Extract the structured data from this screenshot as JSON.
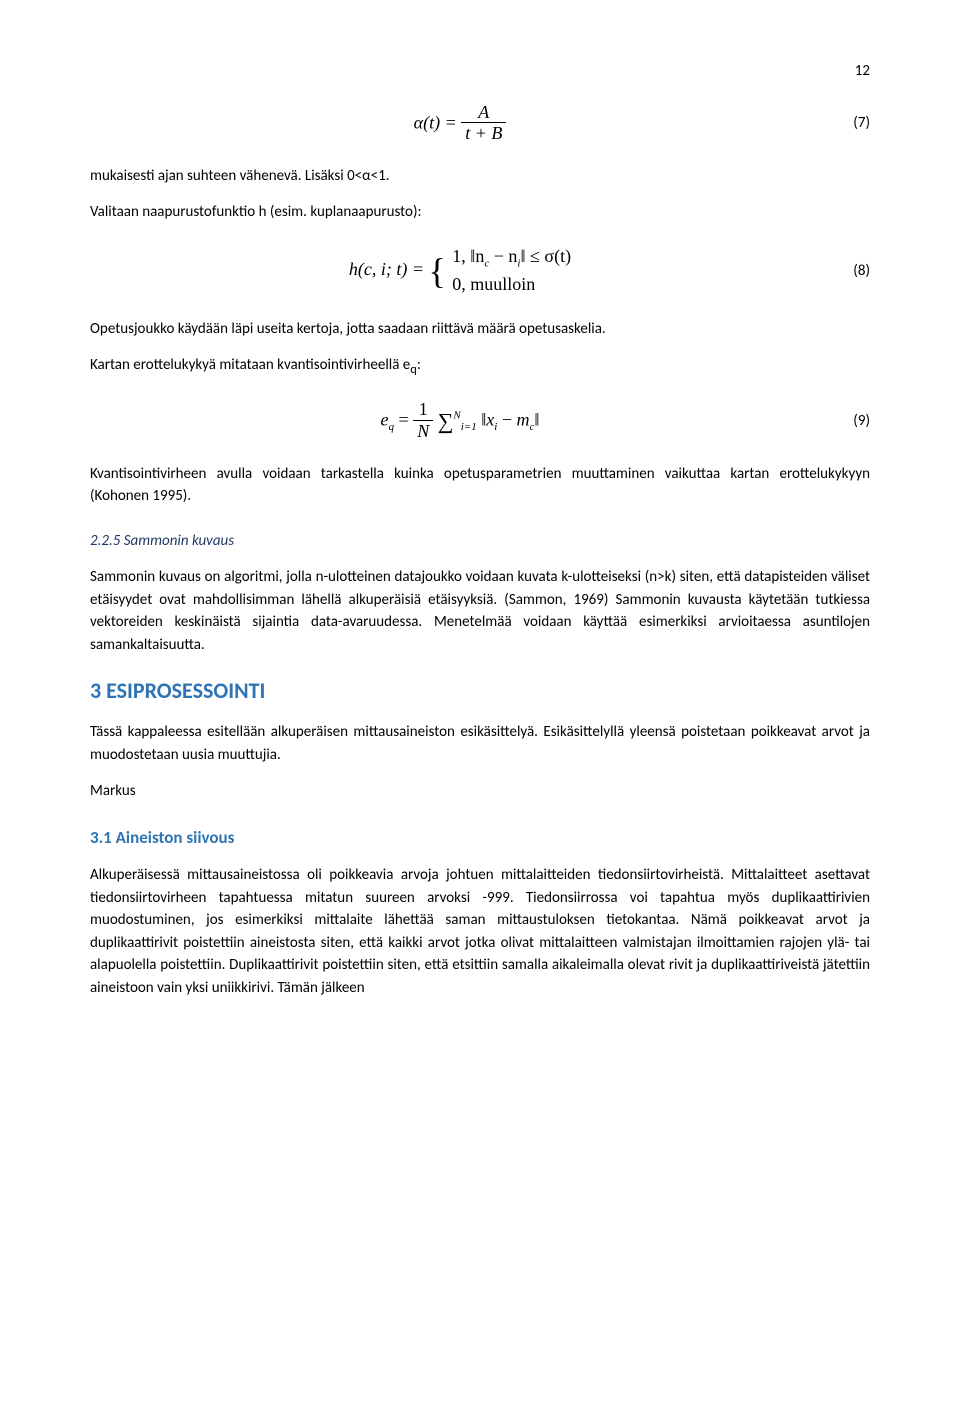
{
  "page_number": "12",
  "formula7": {
    "num": "(7)",
    "lhs": "α(t) = ",
    "frac_top": "A",
    "frac_bot": "t + B"
  },
  "p1": "mukaisesti ajan suhteen vähenevä. Lisäksi 0<α<1.",
  "p2": "Valitaan naapurustofunktio h (esim. kuplanaapurusto):",
  "formula8": {
    "num": "(8)",
    "lhs": "h(c, i; t) = ",
    "case1_pre": "1,   ‖",
    "case1_nc": "n",
    "case1_c": "c",
    "case1_mid": " − ",
    "case1_ni": "n",
    "case1_i": "i",
    "case1_post": "‖ ≤ σ(t)",
    "case2": "0,   muulloin"
  },
  "p3": "Opetusjoukko käydään läpi useita kertoja, jotta saadaan riittävä määrä opetusaskelia.",
  "p4_pre": "Kartan erottelukykyä mitataan kvantisointivirheellä e",
  "p4_sub": "q",
  "p4_post": ":",
  "formula9": {
    "num": "(9)",
    "part1": "e",
    "part1_sub": "q",
    "part2": " = ",
    "frac_top": "1",
    "frac_bot": "N",
    "sum_lower": "i=1",
    "sum_upper": "N",
    "part3_pre": "‖",
    "part3_x": "x",
    "part3_xi": "i",
    "part3_mid": " − ",
    "part3_m": "m",
    "part3_mc": "c",
    "part3_post": "‖"
  },
  "p5": "Kvantisointivirheen avulla voidaan tarkastella kuinka opetusparametrien muuttaminen vaikuttaa kartan erottelukykyyn (Kohonen 1995).",
  "sub225": "2.2.5  Sammonin kuvaus",
  "p6": "Sammonin kuvaus on algoritmi, jolla n-ulotteinen datajoukko voidaan kuvata k-ulotteiseksi (n>k) siten, että datapisteiden väliset etäisyydet ovat mahdollisimman lähellä alkuperäisiä etäisyyksiä. (Sammon, 1969) Sammonin kuvausta käytetään tutkiessa vektoreiden keskinäistä sijaintia data-avaruudessa. Menetelmää voidaan käyttää esimerkiksi arvioitaessa asuntilojen samankaltaisuutta.",
  "h3": "3      ESIPROSESSOINTI",
  "p7": "Tässä kappaleessa esitellään alkuperäisen mittausaineiston esikäsittelyä. Esikäsittelyllä yleensä poistetaan poikkeavat arvot ja muodostetaan uusia muuttujia.",
  "author": "Markus",
  "h31": "3.1  Aineiston siivous",
  "p8": "Alkuperäisessä mittausaineistossa oli poikkeavia arvoja johtuen mittalaitteiden tiedonsiirtovirheistä. Mittalaitteet asettavat tiedonsiirtovirheen tapahtuessa mitatun suureen arvoksi -999. Tiedonsiirrossa voi tapahtua myös duplikaattirivien muodostuminen, jos esimerkiksi mittalaite lähettää saman mittaustuloksen tietokantaa. Nämä poikkeavat arvot ja duplikaattirivit poistettiin aineistosta siten, että kaikki arvot jotka olivat mittalaitteen valmistajan ilmoittamien rajojen ylä- tai alapuolella poistettiin. Duplikaattirivit poistettiin siten, että etsittiin samalla aikaleimalla olevat rivit ja duplikaattiriveistä jätettiin aineistoon vain yksi uniikkirivi. Tämän jälkeen"
}
